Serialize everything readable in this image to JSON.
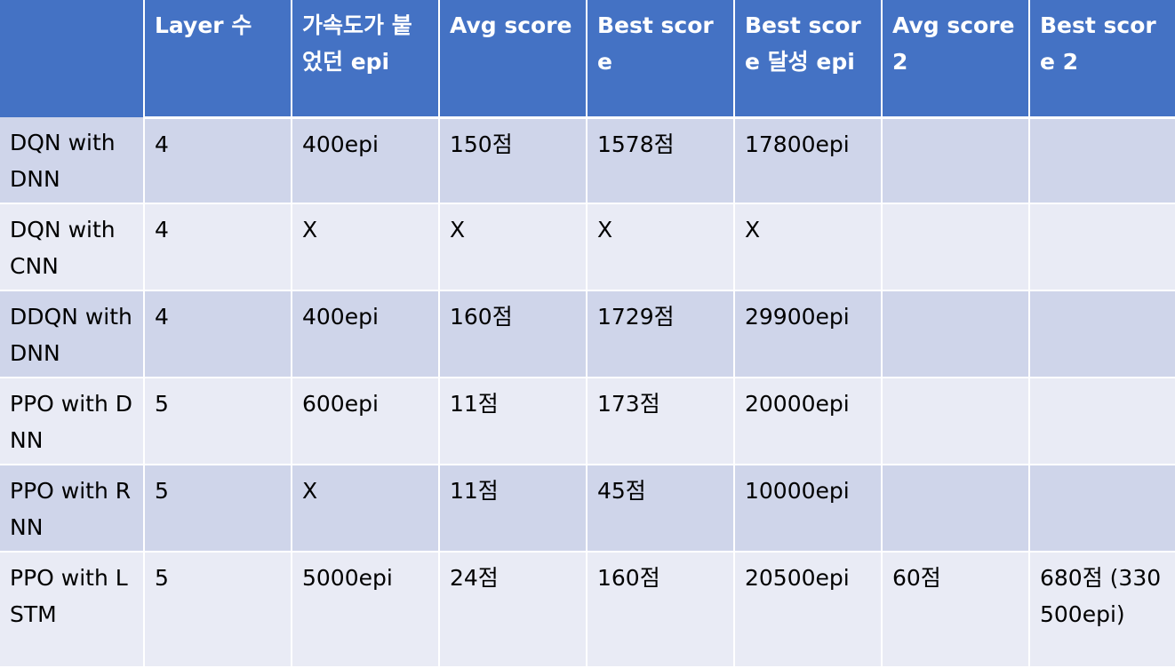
{
  "table": {
    "headers": [
      "",
      "Layer 수",
      "가속도가 붙었던 epi",
      "Avg score",
      "Best score",
      "Best score 달성 epi",
      "Avg score 2",
      "Best score 2"
    ],
    "rows": [
      [
        "DQN with DNN",
        "4",
        "400epi",
        "150점",
        "1578점",
        "17800epi",
        "",
        ""
      ],
      [
        "DQN with CNN",
        "4",
        "X",
        "X",
        "X",
        "X",
        "",
        ""
      ],
      [
        "DDQN with DNN",
        "4",
        "400epi",
        "160점",
        "1729점",
        "29900epi",
        "",
        ""
      ],
      [
        "PPO with DNN",
        "5",
        "600epi",
        "11점",
        "173점",
        "20000epi",
        "",
        ""
      ],
      [
        "PPO with RNN",
        "5",
        "X",
        "11점",
        "45점",
        "10000epi",
        "",
        ""
      ],
      [
        "PPO with LSTM",
        "5",
        "5000epi",
        "24점",
        "160점",
        "20500epi",
        "60점",
        "680점 (330500epi)"
      ]
    ]
  },
  "colors": {
    "header_bg": "#4472c4",
    "row_odd_bg": "#cfd5ea",
    "row_even_bg": "#e9ebf5"
  }
}
